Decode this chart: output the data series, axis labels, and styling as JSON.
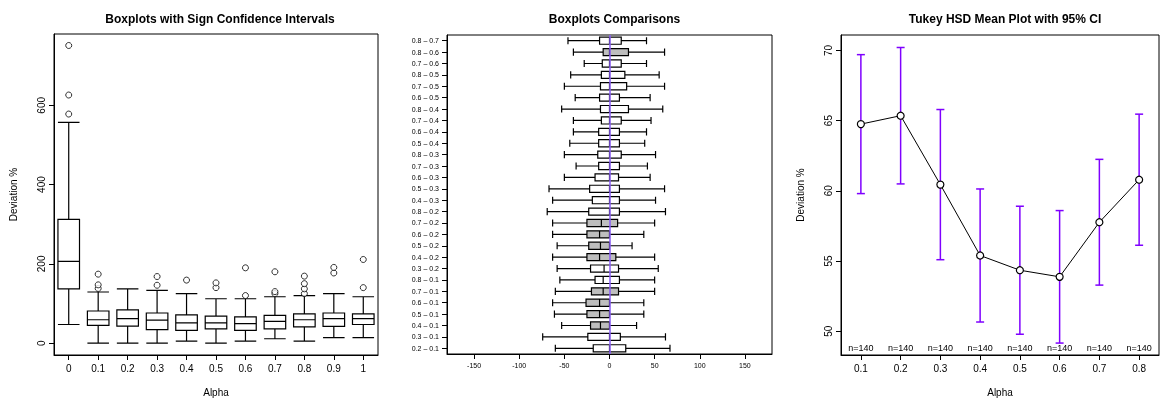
{
  "chart_data": [
    {
      "type": "box",
      "title": "Boxplots with Sign Confidence Intervals",
      "xlabel": "Alpha",
      "ylabel": "Deviation %",
      "color": "#ffffff",
      "categories": [
        "0",
        "0.1",
        "0.2",
        "0.3",
        "0.4",
        "0.5",
        "0.6",
        "0.7",
        "0.8",
        "0.9",
        "1"
      ],
      "boxes": [
        {
          "low": 47,
          "q1": 137,
          "median": 206,
          "q3": 312,
          "high": 557,
          "outliers": [
            578,
            626,
            751
          ]
        },
        {
          "low": 0,
          "q1": 45,
          "median": 59,
          "q3": 81,
          "high": 129,
          "outliers": [
            138,
            147,
            174
          ]
        },
        {
          "low": 0,
          "q1": 43,
          "median": 62,
          "q3": 84,
          "high": 137
        },
        {
          "low": 0,
          "q1": 34,
          "median": 58,
          "q3": 76,
          "high": 133,
          "outliers": [
            146,
            168
          ]
        },
        {
          "low": 5,
          "q1": 32,
          "median": 51,
          "q3": 71,
          "high": 125,
          "outliers": [
            159
          ]
        },
        {
          "low": 0,
          "q1": 36,
          "median": 51,
          "q3": 68,
          "high": 112,
          "outliers": [
            140,
            152
          ]
        },
        {
          "low": 5,
          "q1": 32,
          "median": 49,
          "q3": 66,
          "high": 112,
          "outliers": [
            120,
            190
          ]
        },
        {
          "low": 11,
          "q1": 36,
          "median": 55,
          "q3": 70,
          "high": 117,
          "outliers": [
            125,
            130,
            180
          ]
        },
        {
          "low": 5,
          "q1": 41,
          "median": 59,
          "q3": 74,
          "high": 120,
          "outliers": [
            125,
            137,
            150,
            169
          ]
        },
        {
          "low": 14,
          "q1": 42,
          "median": 62,
          "q3": 76,
          "high": 125,
          "outliers": [
            177,
            191
          ]
        },
        {
          "low": 14,
          "q1": 47,
          "median": 62,
          "q3": 74,
          "high": 117,
          "outliers": [
            140,
            211
          ]
        }
      ],
      "ylim": [
        -30,
        780
      ],
      "yticks": [
        0,
        200,
        400,
        600
      ]
    },
    {
      "type": "box",
      "title": "Boxplots Comparisons",
      "orientation": "horizontal",
      "categories": [
        "0.8 – 0.7",
        "0.8 – 0.6",
        "0.7 – 0.6",
        "0.8 – 0.5",
        "0.7 – 0.5",
        "0.6 – 0.5",
        "0.8 – 0.4",
        "0.7 – 0.4",
        "0.6 – 0.4",
        "0.5 – 0.4",
        "0.8 – 0.3",
        "0.7 – 0.3",
        "0.6 – 0.3",
        "0.5 – 0.3",
        "0.4 – 0.3",
        "0.8 – 0.2",
        "0.7 – 0.2",
        "0.6 – 0.2",
        "0.5 – 0.2",
        "0.4 – 0.2",
        "0.3 – 0.2",
        "0.8 – 0.1",
        "0.7 – 0.1",
        "0.6 – 0.1",
        "0.5 – 0.1",
        "0.4 – 0.1",
        "0.3 – 0.1",
        "0.2 – 0.1"
      ],
      "boxes": [
        {
          "low": -46,
          "q1": -11,
          "median": 0,
          "q3": 13,
          "high": 41
        },
        {
          "low": -40,
          "q1": -7,
          "median": 0,
          "q3": 21,
          "high": 61
        },
        {
          "low": -28,
          "q1": -8,
          "median": 0,
          "q3": 13,
          "high": 41
        },
        {
          "low": -43,
          "q1": -9,
          "median": 0,
          "q3": 17,
          "high": 55
        },
        {
          "low": -50,
          "q1": -10,
          "median": 0,
          "q3": 19,
          "high": 61
        },
        {
          "low": -38,
          "q1": -11,
          "median": 0,
          "q3": 11,
          "high": 45
        },
        {
          "low": -53,
          "q1": -10,
          "median": 0,
          "q3": 21,
          "high": 59
        },
        {
          "low": -40,
          "q1": -9,
          "median": 0,
          "q3": 13,
          "high": 46
        },
        {
          "low": -40,
          "q1": -12,
          "median": 0,
          "q3": 11,
          "high": 41
        },
        {
          "low": -44,
          "q1": -12,
          "median": 0,
          "q3": 11,
          "high": 39
        },
        {
          "low": -50,
          "q1": -13,
          "median": 0,
          "q3": 13,
          "high": 51
        },
        {
          "low": -37,
          "q1": -12,
          "median": 0,
          "q3": 11,
          "high": 42
        },
        {
          "low": -50,
          "q1": -16,
          "median": 0,
          "q3": 10,
          "high": 45
        },
        {
          "low": -67,
          "q1": -22,
          "median": 0,
          "q3": 11,
          "high": 61
        },
        {
          "low": -63,
          "q1": -19,
          "median": 0,
          "q3": 11,
          "high": 51
        },
        {
          "low": -69,
          "q1": -23,
          "median": 0,
          "q3": 11,
          "high": 62
        },
        {
          "low": -63,
          "q1": -25,
          "median": -9,
          "q3": 9,
          "high": 50
        },
        {
          "low": -63,
          "q1": -25,
          "median": -11,
          "q3": 0,
          "high": 38
        },
        {
          "low": -58,
          "q1": -23,
          "median": -10,
          "q3": 0,
          "high": 25
        },
        {
          "low": -63,
          "q1": -25,
          "median": -11,
          "q3": 7,
          "high": 50
        },
        {
          "low": -58,
          "q1": -21,
          "median": -6,
          "q3": 10,
          "high": 54
        },
        {
          "low": -55,
          "q1": -16,
          "median": -7,
          "q3": 11,
          "high": 50
        },
        {
          "low": -60,
          "q1": -20,
          "median": -7,
          "q3": 10,
          "high": 50
        },
        {
          "low": -63,
          "q1": -26,
          "median": -11,
          "q3": 0,
          "high": 38
        },
        {
          "low": -61,
          "q1": -25,
          "median": -11,
          "q3": 0,
          "high": 38
        },
        {
          "low": -53,
          "q1": -21,
          "median": -10,
          "q3": 0,
          "high": 30
        },
        {
          "low": -74,
          "q1": -24,
          "median": 0,
          "q3": 12,
          "high": 62
        },
        {
          "low": -60,
          "q1": -18,
          "median": 0,
          "q3": 18,
          "high": 67
        }
      ],
      "colors": [
        "#ffffff",
        "#bebebe",
        "#ffffff",
        "#ffffff",
        "#ffffff",
        "#ffffff",
        "#ffffff",
        "#ffffff",
        "#ffffff",
        "#ffffff",
        "#ffffff",
        "#ffffff",
        "#ffffff",
        "#ffffff",
        "#ffffff",
        "#ffffff",
        "#bebebe",
        "#bebebe",
        "#bebebe",
        "#bebebe",
        "#ffffff",
        "#ffffff",
        "#bebebe",
        "#bebebe",
        "#bebebe",
        "#bebebe",
        "#ffffff",
        "#ffffff"
      ],
      "xlim": [
        -180,
        180
      ],
      "xticks": [
        -150,
        -100,
        -50,
        0,
        50,
        100,
        150
      ],
      "ref_lines": [
        {
          "axis": "x",
          "value": 0,
          "color": "#8a5cf6"
        }
      ]
    },
    {
      "type": "line",
      "title": "Tukey HSD Mean Plot with 95% CI",
      "xlabel": "Alpha",
      "ylabel": "Deviation %",
      "color": "#000000",
      "marker": "circle",
      "categories": [
        "0.1",
        "0.2",
        "0.3",
        "0.4",
        "0.5",
        "0.6",
        "0.7",
        "0.8"
      ],
      "values": [
        64.75,
        65.35,
        60.44,
        55.39,
        54.34,
        53.87,
        57.76,
        60.79
      ],
      "errors": [
        4.95,
        4.86,
        5.35,
        4.74,
        4.56,
        4.72,
        4.48,
        4.67
      ],
      "ylim": [
        48.3,
        71.1
      ],
      "yticks": [
        50,
        55,
        60,
        65,
        70
      ],
      "annotations": [
        "n=140",
        "n=140",
        "n=140",
        "n=140",
        "n=140",
        "n=140",
        "n=140",
        "n=140"
      ]
    }
  ]
}
